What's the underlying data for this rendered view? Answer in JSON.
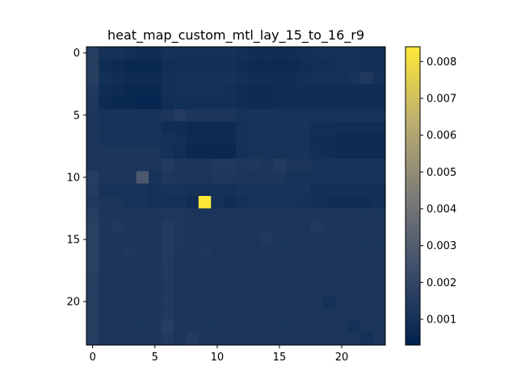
{
  "chart_data": {
    "type": "heatmap",
    "title": "heat_map_custom_mtl_lay_15_to_16_r9",
    "xlabel": "",
    "ylabel": "",
    "colormap": "cividis",
    "rows": 24,
    "cols": 24,
    "x_ticks": [
      "0",
      "5",
      "10",
      "15",
      "20"
    ],
    "y_ticks": [
      "0",
      "5",
      "10",
      "15",
      "20"
    ],
    "colorbar": {
      "min": 0.0003,
      "max": 0.0084,
      "ticks": [
        "0.001",
        "0.002",
        "0.003",
        "0.004",
        "0.005",
        "0.006",
        "0.007",
        "0.008"
      ]
    },
    "grid": false,
    "values": [
      [
        0.0016,
        0.001,
        0.001,
        0.0009,
        0.0008,
        0.0008,
        0.001,
        0.001,
        0.001,
        0.001,
        0.001,
        0.001,
        0.0009,
        0.0008,
        0.0008,
        0.0008,
        0.0008,
        0.0009,
        0.001,
        0.001,
        0.001,
        0.001,
        0.0009,
        0.0009
      ],
      [
        0.0016,
        0.0008,
        0.0007,
        0.0006,
        0.0006,
        0.0006,
        0.0008,
        0.0009,
        0.0009,
        0.0009,
        0.0009,
        0.0009,
        0.0008,
        0.0007,
        0.0007,
        0.0007,
        0.0007,
        0.0008,
        0.0009,
        0.0009,
        0.001,
        0.001,
        0.0009,
        0.0009
      ],
      [
        0.0016,
        0.0009,
        0.0008,
        0.0007,
        0.0007,
        0.0007,
        0.0009,
        0.001,
        0.001,
        0.001,
        0.001,
        0.001,
        0.0009,
        0.0008,
        0.0008,
        0.0008,
        0.0008,
        0.0009,
        0.001,
        0.001,
        0.001,
        0.0011,
        0.0014,
        0.001
      ],
      [
        0.0014,
        0.0008,
        0.0007,
        0.0006,
        0.0006,
        0.0006,
        0.0009,
        0.001,
        0.001,
        0.001,
        0.001,
        0.0009,
        0.0008,
        0.0007,
        0.0007,
        0.0008,
        0.0008,
        0.0008,
        0.0008,
        0.0008,
        0.0008,
        0.0008,
        0.0008,
        0.0008
      ],
      [
        0.0013,
        0.0007,
        0.0006,
        0.0006,
        0.0005,
        0.0005,
        0.0008,
        0.0009,
        0.0009,
        0.0009,
        0.0009,
        0.0009,
        0.0008,
        0.0007,
        0.0007,
        0.0008,
        0.0008,
        0.0008,
        0.0008,
        0.0008,
        0.0008,
        0.0008,
        0.0008,
        0.0008
      ],
      [
        0.0012,
        0.0011,
        0.0011,
        0.0011,
        0.0011,
        0.0011,
        0.0012,
        0.0015,
        0.0012,
        0.0012,
        0.0012,
        0.0012,
        0.0011,
        0.0011,
        0.0011,
        0.0011,
        0.0011,
        0.0011,
        0.0011,
        0.0011,
        0.0011,
        0.0011,
        0.0011,
        0.0011
      ],
      [
        0.0012,
        0.0011,
        0.0011,
        0.0011,
        0.0011,
        0.0011,
        0.0008,
        0.0008,
        0.0007,
        0.0007,
        0.0007,
        0.0007,
        0.001,
        0.0011,
        0.0011,
        0.0011,
        0.0011,
        0.0011,
        0.0009,
        0.0009,
        0.0008,
        0.0008,
        0.0008,
        0.0008
      ],
      [
        0.0012,
        0.0011,
        0.0011,
        0.0011,
        0.0011,
        0.0011,
        0.001,
        0.0009,
        0.0007,
        0.0007,
        0.0007,
        0.0007,
        0.001,
        0.0011,
        0.0011,
        0.0011,
        0.0011,
        0.0011,
        0.0008,
        0.0008,
        0.0007,
        0.0007,
        0.0007,
        0.0007
      ],
      [
        0.0012,
        0.0012,
        0.0012,
        0.0012,
        0.0012,
        0.0012,
        0.001,
        0.0008,
        0.0006,
        0.0006,
        0.0006,
        0.0006,
        0.001,
        0.0011,
        0.0011,
        0.0011,
        0.0011,
        0.0011,
        0.0009,
        0.0008,
        0.0007,
        0.0007,
        0.0007,
        0.0007
      ],
      [
        0.0012,
        0.0012,
        0.0012,
        0.0012,
        0.0012,
        0.0012,
        0.0015,
        0.0012,
        0.0012,
        0.0012,
        0.0014,
        0.0014,
        0.0013,
        0.0013,
        0.0012,
        0.0015,
        0.0012,
        0.0012,
        0.0011,
        0.0011,
        0.0011,
        0.0011,
        0.0011,
        0.0011
      ],
      [
        0.0016,
        0.0012,
        0.0012,
        0.0012,
        0.0028,
        0.0011,
        0.0013,
        0.0012,
        0.0012,
        0.0012,
        0.0013,
        0.0013,
        0.0012,
        0.0012,
        0.0012,
        0.0012,
        0.0011,
        0.0011,
        0.0011,
        0.0011,
        0.0011,
        0.0011,
        0.0011,
        0.0011
      ],
      [
        0.0015,
        0.0011,
        0.0011,
        0.0011,
        0.0011,
        0.001,
        0.0011,
        0.0011,
        0.001,
        0.001,
        0.001,
        0.001,
        0.0011,
        0.0011,
        0.0011,
        0.0011,
        0.0011,
        0.0011,
        0.0009,
        0.0009,
        0.0009,
        0.0009,
        0.0009,
        0.0009
      ],
      [
        0.0014,
        0.0012,
        0.0012,
        0.0011,
        0.0011,
        0.001,
        0.001,
        0.001,
        0.0008,
        0.0084,
        0.001,
        0.0008,
        0.001,
        0.0011,
        0.0011,
        0.0011,
        0.0011,
        0.001,
        0.0009,
        0.0008,
        0.0008,
        0.0008,
        0.0008,
        0.0009
      ],
      [
        0.0016,
        0.0012,
        0.0012,
        0.0012,
        0.0012,
        0.0012,
        0.0013,
        0.0013,
        0.0012,
        0.0012,
        0.0012,
        0.0012,
        0.0012,
        0.0012,
        0.0012,
        0.0012,
        0.0012,
        0.0012,
        0.0012,
        0.0012,
        0.0012,
        0.0012,
        0.0012,
        0.0012
      ],
      [
        0.0017,
        0.0012,
        0.0014,
        0.0012,
        0.0012,
        0.0012,
        0.0015,
        0.0013,
        0.0012,
        0.0012,
        0.0012,
        0.0012,
        0.0012,
        0.0012,
        0.0012,
        0.0012,
        0.0012,
        0.0012,
        0.0014,
        0.0012,
        0.0012,
        0.0012,
        0.0012,
        0.0012
      ],
      [
        0.0017,
        0.0012,
        0.0012,
        0.0012,
        0.0012,
        0.0012,
        0.0015,
        0.0013,
        0.0012,
        0.0012,
        0.0012,
        0.0012,
        0.0012,
        0.0012,
        0.0014,
        0.0012,
        0.0012,
        0.0012,
        0.0012,
        0.0012,
        0.0012,
        0.0012,
        0.0012,
        0.0012
      ],
      [
        0.0017,
        0.0012,
        0.0012,
        0.0013,
        0.0012,
        0.0012,
        0.0015,
        0.0012,
        0.0012,
        0.0013,
        0.0012,
        0.0012,
        0.0012,
        0.0012,
        0.0012,
        0.0012,
        0.0012,
        0.0012,
        0.0012,
        0.0012,
        0.0012,
        0.0012,
        0.0012,
        0.0012
      ],
      [
        0.0017,
        0.0012,
        0.0012,
        0.0012,
        0.0012,
        0.0012,
        0.0014,
        0.0012,
        0.0012,
        0.0012,
        0.0012,
        0.0012,
        0.0012,
        0.0012,
        0.0012,
        0.0012,
        0.0012,
        0.0012,
        0.0012,
        0.0012,
        0.0012,
        0.0012,
        0.0012,
        0.0012
      ],
      [
        0.0016,
        0.0012,
        0.0012,
        0.0012,
        0.0012,
        0.0012,
        0.0014,
        0.0012,
        0.0012,
        0.0012,
        0.0012,
        0.0012,
        0.0012,
        0.0012,
        0.0012,
        0.0012,
        0.0012,
        0.0012,
        0.0012,
        0.0012,
        0.0012,
        0.0012,
        0.0012,
        0.0012
      ],
      [
        0.0016,
        0.0012,
        0.0012,
        0.0012,
        0.0012,
        0.0012,
        0.0014,
        0.0012,
        0.0012,
        0.0012,
        0.0012,
        0.0012,
        0.0012,
        0.0012,
        0.0012,
        0.0012,
        0.0012,
        0.0012,
        0.0012,
        0.0012,
        0.0012,
        0.0012,
        0.0012,
        0.0012
      ],
      [
        0.0016,
        0.0012,
        0.0012,
        0.0012,
        0.0012,
        0.0012,
        0.0014,
        0.0012,
        0.0012,
        0.0012,
        0.0012,
        0.0012,
        0.0012,
        0.0012,
        0.0012,
        0.0012,
        0.0012,
        0.0012,
        0.0012,
        0.001,
        0.0012,
        0.0012,
        0.0012,
        0.0012
      ],
      [
        0.0016,
        0.0012,
        0.0012,
        0.0012,
        0.0012,
        0.0012,
        0.0014,
        0.0012,
        0.0012,
        0.0012,
        0.0012,
        0.0012,
        0.0012,
        0.0012,
        0.0012,
        0.0012,
        0.0012,
        0.0012,
        0.0012,
        0.0012,
        0.0012,
        0.0012,
        0.0012,
        0.0012
      ],
      [
        0.0016,
        0.0012,
        0.0012,
        0.0012,
        0.0012,
        0.0012,
        0.0016,
        0.0012,
        0.0012,
        0.0012,
        0.0012,
        0.0012,
        0.0012,
        0.0012,
        0.0012,
        0.0012,
        0.0012,
        0.0012,
        0.0012,
        0.0012,
        0.0012,
        0.001,
        0.0012,
        0.0012
      ],
      [
        0.0016,
        0.0012,
        0.0012,
        0.0012,
        0.0012,
        0.0012,
        0.0014,
        0.0012,
        0.0015,
        0.0012,
        0.0012,
        0.0012,
        0.0012,
        0.0012,
        0.0012,
        0.0012,
        0.0012,
        0.0012,
        0.0012,
        0.0012,
        0.0012,
        0.0012,
        0.001,
        0.0012
      ]
    ]
  }
}
